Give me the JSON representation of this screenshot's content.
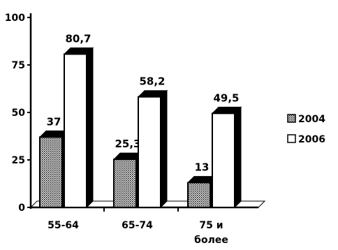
{
  "chart_data": {
    "type": "bar",
    "categories": [
      "55-64",
      "65-74",
      "75 и более"
    ],
    "category_lines": [
      [
        "55-64"
      ],
      [
        "65-74"
      ],
      [
        "75 и",
        "более"
      ]
    ],
    "series": [
      {
        "name": "2004",
        "values": [
          37,
          25.3,
          13
        ],
        "value_labels": [
          "37",
          "25,3",
          "13"
        ],
        "fill": "dotted-gray"
      },
      {
        "name": "2006",
        "values": [
          80.7,
          58.2,
          49.5
        ],
        "value_labels": [
          "80,7",
          "58,2",
          "49,5"
        ],
        "fill": "#ffffff"
      }
    ],
    "yticks": [
      0,
      25,
      50,
      75,
      100
    ],
    "ylim": [
      0,
      100
    ],
    "legend": "right",
    "grid": false,
    "style": "3d"
  }
}
